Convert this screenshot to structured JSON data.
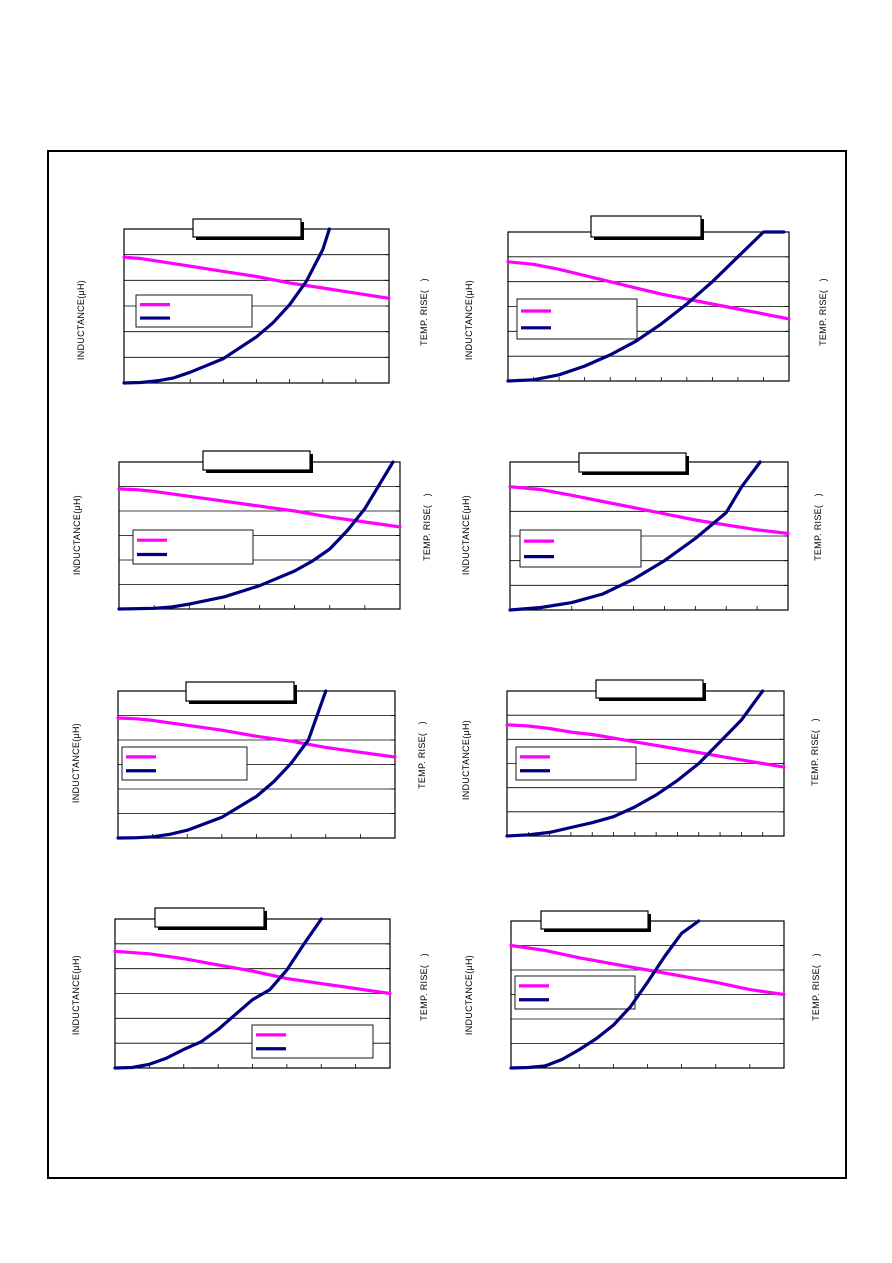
{
  "chart_data": [
    {
      "type": "line",
      "title": "",
      "ylabel": "INDUCTANCE(μH)",
      "y2label": "TEMP. RISE(   )",
      "xlim": [
        0,
        8
      ],
      "ylim": [
        0,
        6
      ],
      "y2lim": [
        0,
        6
      ],
      "grid": true,
      "legend": "middle-left",
      "series": [
        {
          "name": "",
          "color": "#ff00ff",
          "x": [
            0,
            0.5,
            1,
            2,
            3,
            4,
            5,
            6,
            7,
            8
          ],
          "y": [
            4.9,
            4.85,
            4.75,
            4.55,
            4.35,
            4.15,
            3.9,
            3.7,
            3.5,
            3.3
          ]
        },
        {
          "name": "",
          "color": "#000080",
          "x": [
            0,
            0.5,
            1,
            1.5,
            2,
            3,
            4,
            4.5,
            5,
            5.5,
            6,
            6.2
          ],
          "y": [
            0,
            0.02,
            0.08,
            0.2,
            0.42,
            0.95,
            1.8,
            2.35,
            3.05,
            3.95,
            5.2,
            6
          ]
        }
      ]
    },
    {
      "type": "line",
      "title": "",
      "ylabel": "INDUCTANCE(μH)",
      "y2label": "TEMP. RISE(   )",
      "xlim": [
        0,
        11
      ],
      "ylim": [
        0,
        6
      ],
      "y2lim": [
        0,
        6
      ],
      "grid": true,
      "legend": "middle-left",
      "series": [
        {
          "name": "",
          "color": "#ff00ff",
          "x": [
            0,
            1,
            2,
            3,
            4,
            5,
            6,
            7,
            8,
            9,
            10,
            11
          ],
          "y": [
            4.8,
            4.7,
            4.5,
            4.25,
            4.0,
            3.75,
            3.5,
            3.3,
            3.1,
            2.9,
            2.7,
            2.5
          ]
        },
        {
          "name": "",
          "color": "#000080",
          "x": [
            0,
            1,
            2,
            3,
            4,
            5,
            6,
            7,
            8,
            9,
            10,
            10.8
          ],
          "y": [
            0,
            0.05,
            0.25,
            0.6,
            1.05,
            1.6,
            2.3,
            3.1,
            4.0,
            5.0,
            6.0,
            6.2
          ]
        }
      ]
    },
    {
      "type": "line",
      "title": "",
      "ylabel": "INDUCTANCE(μH)",
      "y2label": "TEMP. RISE(   )",
      "xlim": [
        0,
        8
      ],
      "ylim": [
        0,
        6
      ],
      "y2lim": [
        0,
        6
      ],
      "grid": true,
      "legend": "middle-left",
      "series": [
        {
          "name": "",
          "color": "#ff00ff",
          "x": [
            0,
            0.5,
            1,
            2,
            3,
            4,
            5,
            6,
            7,
            8
          ],
          "y": [
            4.9,
            4.87,
            4.8,
            4.6,
            4.4,
            4.2,
            4.0,
            3.75,
            3.55,
            3.35
          ]
        },
        {
          "name": "",
          "color": "#000080",
          "x": [
            0,
            1,
            1.5,
            2,
            3,
            4,
            5,
            5.5,
            6,
            6.5,
            7,
            7.8
          ],
          "y": [
            0,
            0.03,
            0.08,
            0.2,
            0.5,
            0.95,
            1.55,
            1.95,
            2.45,
            3.2,
            4.1,
            6
          ]
        }
      ]
    },
    {
      "type": "line",
      "title": "",
      "ylabel": "INDUCTANCE(μH)",
      "y2label": "TEMP. RISE(   )",
      "xlim": [
        0,
        9
      ],
      "ylim": [
        0,
        6
      ],
      "y2lim": [
        0,
        6
      ],
      "grid": true,
      "legend": "middle-left",
      "series": [
        {
          "name": "",
          "color": "#ff00ff",
          "x": [
            0,
            1,
            2,
            3,
            4,
            5,
            6,
            7,
            8,
            9
          ],
          "y": [
            5.0,
            4.88,
            4.65,
            4.4,
            4.15,
            3.9,
            3.65,
            3.45,
            3.25,
            3.1
          ]
        },
        {
          "name": "",
          "color": "#000080",
          "x": [
            0,
            1,
            2,
            3,
            4,
            5,
            6,
            7,
            7.5,
            8.1
          ],
          "y": [
            0,
            0.1,
            0.3,
            0.65,
            1.25,
            2.0,
            2.9,
            3.95,
            5.0,
            6
          ]
        }
      ]
    },
    {
      "type": "line",
      "title": "",
      "ylabel": "INDUCTANCE(μH)",
      "y2label": "TEMP. RISE(   )",
      "xlim": [
        0,
        8
      ],
      "ylim": [
        0,
        6
      ],
      "y2lim": [
        0,
        6
      ],
      "grid": true,
      "legend": "middle-left",
      "series": [
        {
          "name": "",
          "color": "#ff00ff",
          "x": [
            0,
            0.5,
            1,
            2,
            3,
            4,
            5,
            6,
            7,
            8
          ],
          "y": [
            4.9,
            4.87,
            4.8,
            4.6,
            4.4,
            4.15,
            3.95,
            3.7,
            3.5,
            3.3
          ]
        },
        {
          "name": "",
          "color": "#000080",
          "x": [
            0,
            0.5,
            1,
            1.5,
            2,
            3,
            4,
            4.5,
            5,
            5.5,
            6
          ],
          "y": [
            0,
            0.01,
            0.05,
            0.15,
            0.32,
            0.85,
            1.7,
            2.3,
            3.05,
            4.0,
            6
          ]
        }
      ]
    },
    {
      "type": "line",
      "title": "",
      "ylabel": "INDUCTANCE(μH)",
      "y2label": "TEMP. RISE(   )",
      "xlim": [
        0,
        13
      ],
      "ylim": [
        0,
        6
      ],
      "y2lim": [
        0,
        6
      ],
      "grid": true,
      "legend": "middle-left",
      "series": [
        {
          "name": "",
          "color": "#ff00ff",
          "x": [
            0,
            1,
            2,
            3,
            4,
            5,
            6,
            7,
            8,
            9,
            10,
            11,
            12,
            13
          ],
          "y": [
            4.6,
            4.55,
            4.45,
            4.3,
            4.2,
            4.05,
            3.9,
            3.75,
            3.6,
            3.45,
            3.3,
            3.15,
            3.0,
            2.85
          ]
        },
        {
          "name": "",
          "color": "#000080",
          "x": [
            0,
            1,
            2,
            3,
            4,
            5,
            6,
            7,
            8,
            9,
            10,
            11,
            12
          ],
          "y": [
            0,
            0.05,
            0.15,
            0.35,
            0.55,
            0.8,
            1.2,
            1.7,
            2.3,
            3.0,
            3.9,
            4.8,
            6
          ]
        }
      ]
    },
    {
      "type": "line",
      "title": "",
      "ylabel": "INDUCTANCE(μH)",
      "y2label": "TEMP. RISE(   )",
      "xlim": [
        0,
        8
      ],
      "ylim": [
        0,
        6
      ],
      "y2lim": [
        0,
        6
      ],
      "grid": true,
      "legend": "bottom-right",
      "series": [
        {
          "name": "",
          "color": "#ff00ff",
          "x": [
            0,
            1,
            2,
            3,
            4,
            5,
            6,
            7,
            8
          ],
          "y": [
            4.7,
            4.6,
            4.4,
            4.15,
            3.9,
            3.6,
            3.4,
            3.2,
            3.0
          ]
        },
        {
          "name": "",
          "color": "#000080",
          "x": [
            0,
            0.5,
            1,
            1.5,
            2,
            2.5,
            3,
            3.5,
            4,
            4.5,
            5,
            5.5,
            6
          ],
          "y": [
            0,
            0.02,
            0.15,
            0.4,
            0.75,
            1.05,
            1.55,
            2.15,
            2.75,
            3.15,
            3.95,
            5.0,
            6
          ]
        }
      ]
    },
    {
      "type": "line",
      "title": "",
      "ylabel": "INDUCTANCE(μH)",
      "y2label": "TEMP. RISE(   )",
      "xlim": [
        0,
        8
      ],
      "ylim": [
        0,
        6
      ],
      "y2lim": [
        0,
        6
      ],
      "grid": true,
      "legend": "middle-left",
      "series": [
        {
          "name": "",
          "color": "#ff00ff",
          "x": [
            0,
            1,
            2,
            3,
            4,
            5,
            6,
            7,
            8
          ],
          "y": [
            5.0,
            4.8,
            4.5,
            4.25,
            4.0,
            3.75,
            3.5,
            3.2,
            3.0
          ]
        },
        {
          "name": "",
          "color": "#000080",
          "x": [
            0,
            0.5,
            1,
            1.5,
            2,
            2.5,
            3,
            3.5,
            4,
            4.5,
            5,
            5.5
          ],
          "y": [
            0,
            0.02,
            0.08,
            0.35,
            0.75,
            1.2,
            1.75,
            2.5,
            3.5,
            4.55,
            5.5,
            6
          ]
        }
      ]
    }
  ]
}
